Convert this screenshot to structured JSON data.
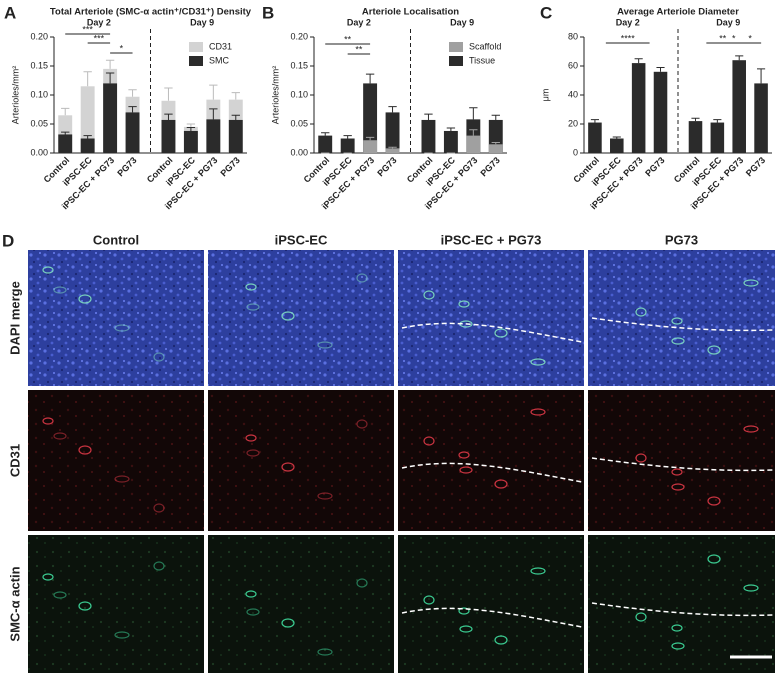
{
  "chart_data": [
    {
      "type": "bar",
      "panel": "A",
      "title": "Total Arteriole (SMC-α actin⁺/CD31⁺) Density",
      "ylabel": "Arterioles/mm²",
      "group_labels": [
        "Day 2",
        "Day 9"
      ],
      "categories": [
        "Control",
        "iPSC-EC",
        "iPSC-EC + PG73",
        "PG73",
        "Control",
        "iPSC-EC",
        "iPSC-EC + PG73",
        "PG73"
      ],
      "series": [
        {
          "name": "CD31",
          "color": "#d3d3d3",
          "values": [
            0.065,
            0.115,
            0.145,
            0.097,
            0.09,
            0.045,
            0.092,
            0.092
          ],
          "errors": [
            0.012,
            0.025,
            0.015,
            0.012,
            0.022,
            0.005,
            0.025,
            0.012
          ]
        },
        {
          "name": "SMC",
          "color": "#2b2b2b",
          "values": [
            0.032,
            0.025,
            0.12,
            0.07,
            0.057,
            0.038,
            0.058,
            0.057
          ],
          "errors": [
            0.004,
            0.005,
            0.018,
            0.01,
            0.01,
            0.006,
            0.018,
            0.008
          ]
        }
      ],
      "ylim": [
        0,
        0.2
      ],
      "yticks": [
        {
          "value": 0,
          "label": "0.00"
        },
        0.05,
        {
          "value": 0.1,
          "label": "0.10"
        },
        0.15,
        {
          "value": 0.2,
          "label": "0.20"
        }
      ],
      "legend": "upper right",
      "annotations": [
        "***",
        "***",
        "*"
      ]
    },
    {
      "type": "bar",
      "panel": "B",
      "title": "Arteriole Localisation",
      "ylabel": "Arterioles/mm²",
      "group_labels": [
        "Day 2",
        "Day 9"
      ],
      "categories": [
        "Control",
        "iPSC-EC",
        "iPSC-EC + PG73",
        "PG73",
        "Control",
        "iPSC-EC",
        "iPSC-EC + PG73",
        "PG73"
      ],
      "series": [
        {
          "name": "Tissue",
          "color": "#2b2b2b",
          "values": [
            0.03,
            0.025,
            0.12,
            0.07,
            0.057,
            0.038,
            0.058,
            0.057
          ],
          "errors": [
            0.005,
            0.005,
            0.016,
            0.01,
            0.01,
            0.005,
            0.02,
            0.008
          ]
        },
        {
          "name": "Scaffold",
          "color": "#a0a0a0",
          "values": [
            0,
            0,
            0.022,
            0.008,
            0,
            0,
            0.03,
            0.015
          ],
          "errors": [
            0,
            0,
            0.005,
            0.002,
            0,
            0,
            0.01,
            0.003
          ]
        }
      ],
      "ylim": [
        0,
        0.2
      ],
      "yticks": [
        {
          "value": 0,
          "label": "0.00"
        },
        0.05,
        {
          "value": 0.1,
          "label": "0.10"
        },
        0.15,
        {
          "value": 0.2,
          "label": "0.20"
        }
      ],
      "legend": "upper right",
      "annotations": [
        "**",
        "**"
      ]
    },
    {
      "type": "bar",
      "panel": "C",
      "title": "Average Arteriole  Diameter",
      "ylabel": "μm",
      "group_labels": [
        "Day 2",
        "Day 9"
      ],
      "categories": [
        "Control",
        "iPSC-EC",
        "iPSC-EC + PG73",
        "PG73",
        "Control",
        "iPSC-EC",
        "iPSC-EC + PG73",
        "PG73"
      ],
      "series": [
        {
          "name": null,
          "color": "#2b2b2b",
          "values": [
            21,
            10,
            62,
            56,
            22,
            21,
            64,
            48
          ],
          "errors": [
            2,
            1,
            3,
            3,
            2,
            2,
            3,
            10
          ]
        }
      ],
      "ylim": [
        0,
        80
      ],
      "yticks": [
        0,
        20,
        40,
        60,
        80
      ],
      "annotations": [
        "****",
        "**",
        "*",
        "*"
      ]
    }
  ],
  "panel_d": {
    "label": "D",
    "columns": [
      "Control",
      "iPSC-EC",
      "iPSC-EC + PG73",
      "PG73"
    ],
    "rows": [
      "DAPI merge",
      "CD31",
      "SMC-α actin"
    ]
  }
}
